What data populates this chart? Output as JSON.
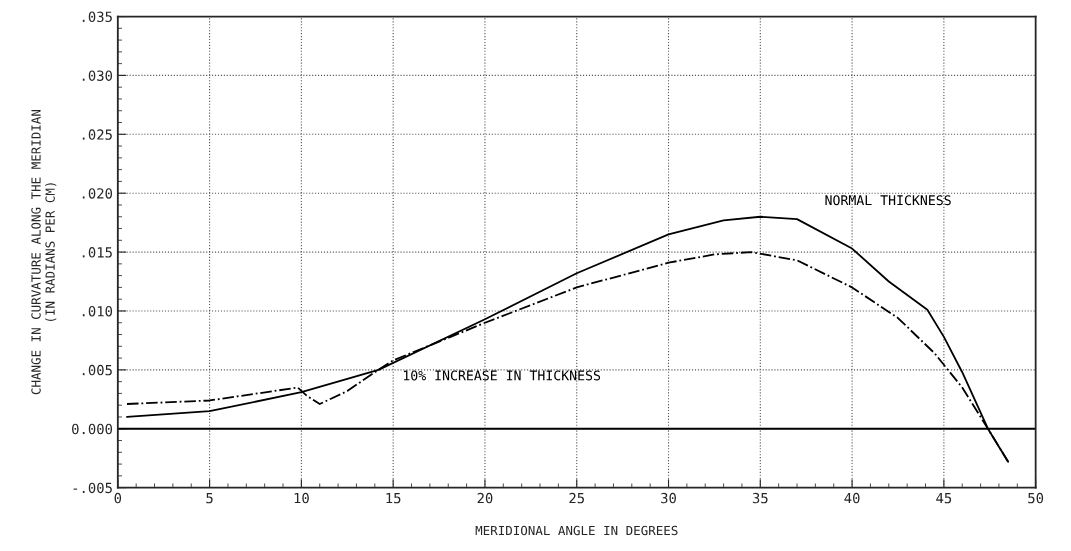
{
  "chart_data": {
    "type": "line",
    "xlabel": "MERIDIONAL ANGLE IN DEGREES",
    "ylabel": "CHANGE IN CURVATURE ALONG THE MERIDIAN\n(IN RADIANS PER CM)",
    "xlim": [
      0,
      50
    ],
    "xticks": [
      0,
      5,
      10,
      15,
      20,
      25,
      30,
      35,
      40,
      45,
      50
    ],
    "ylim": [
      -0.005,
      0.035
    ],
    "yticks": [
      {
        "value": -0.005,
        "label": "-.005"
      },
      {
        "value": 0,
        "label": "0.000"
      },
      {
        "value": 0.005,
        "label": ".005"
      },
      {
        "value": 0.01,
        "label": ".010"
      },
      {
        "value": 0.015,
        "label": ".015"
      },
      {
        "value": 0.02,
        "label": ".020"
      },
      {
        "value": 0.025,
        "label": ".025"
      },
      {
        "value": 0.03,
        "label": ".030"
      },
      {
        "value": 0.035,
        "label": ".035"
      }
    ],
    "grid": true,
    "legend": false,
    "ref_lines": [
      {
        "axis": "y",
        "value": 0,
        "color": "#000000",
        "line_style": "solid"
      }
    ],
    "series": [
      {
        "name": "NORMAL THICKNESS",
        "color": "#000000",
        "line_style": "solid",
        "x": [
          0.5,
          5,
          10,
          14.2,
          20,
          25,
          30,
          33,
          35,
          37,
          40,
          42,
          44.1,
          45,
          46,
          47.4,
          48.5
        ],
        "values": [
          0.001,
          0.0015,
          0.0031,
          0.005,
          0.0093,
          0.0132,
          0.0165,
          0.0177,
          0.018,
          0.0178,
          0.0153,
          0.0125,
          0.0101,
          0.0078,
          0.0048,
          0.0,
          -0.0028
        ]
      },
      {
        "name": "10% INCREASE IN THICKNESS",
        "color": "#000000",
        "line_style": "dashdot",
        "x": [
          0.5,
          5,
          9.8,
          10.3,
          11,
          12.5,
          14,
          15,
          17.5,
          20,
          25,
          30,
          32.5,
          34.5,
          37,
          40,
          42.5,
          44.5,
          46,
          47.4,
          48.5
        ],
        "values": [
          0.0021,
          0.0024,
          0.0035,
          0.0028,
          0.0021,
          0.0032,
          0.0048,
          0.0058,
          0.0074,
          0.009,
          0.012,
          0.0141,
          0.0148,
          0.015,
          0.0143,
          0.012,
          0.0094,
          0.0064,
          0.0035,
          0.0,
          -0.0028
        ]
      }
    ]
  }
}
